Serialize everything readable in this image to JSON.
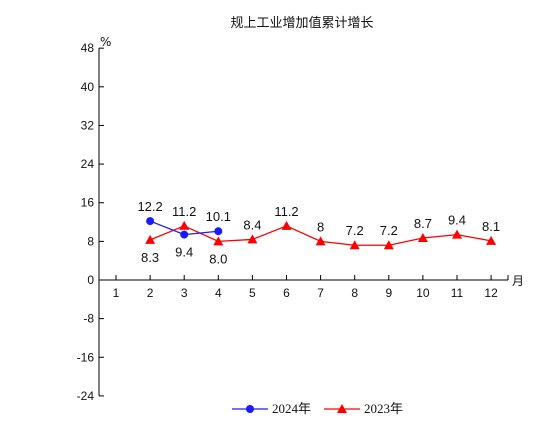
{
  "chart_data": {
    "type": "line",
    "title": "规上工业增加值累计增长",
    "ylabel": "%",
    "xlabel": "月",
    "ylim": [
      -24,
      48
    ],
    "yticks": [
      -24,
      -16,
      -8,
      0,
      8,
      16,
      24,
      32,
      40,
      48
    ],
    "categories": [
      "1",
      "2",
      "3",
      "4",
      "5",
      "6",
      "7",
      "8",
      "9",
      "10",
      "11",
      "12"
    ],
    "grid": false,
    "legend_position": "bottom",
    "series": [
      {
        "name": "2024年",
        "color": "#1a1aff",
        "marker": "circle",
        "values": [
          null,
          12.2,
          9.4,
          10.1,
          null,
          null,
          null,
          null,
          null,
          null,
          null,
          null
        ],
        "labels": [
          "",
          "12.2",
          "9.4",
          "10.1",
          "",
          "",
          "",
          "",
          "",
          "",
          "",
          ""
        ]
      },
      {
        "name": "2023年",
        "color": "#ff0000",
        "marker": "triangle",
        "values": [
          null,
          8.3,
          11.2,
          8.0,
          8.4,
          11.2,
          8,
          7.2,
          7.2,
          8.7,
          9.4,
          8.1
        ],
        "labels": [
          "",
          "8.3",
          "11.2",
          "8.0",
          "8.4",
          "11.2",
          "8",
          "7.2",
          "7.2",
          "8.7",
          "9.4",
          "8.1"
        ]
      }
    ]
  }
}
